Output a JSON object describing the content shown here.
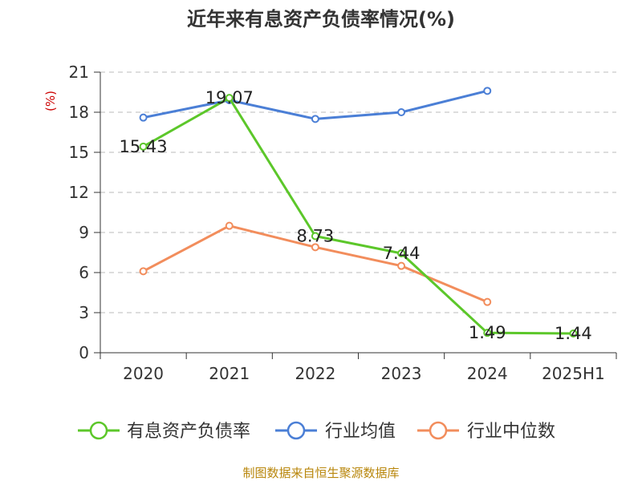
{
  "title": "近年来有息资产负债率情况(%)",
  "source": "制图数据来自恒生聚源数据库",
  "chart_data": {
    "type": "line",
    "title": "近年来有息资产负债率情况(%)",
    "ylabel": "(%)",
    "xlabel": "",
    "categories": [
      "2020",
      "2021",
      "2022",
      "2023",
      "2024",
      "2025H1"
    ],
    "ylim": [
      0,
      21
    ],
    "yticks": [
      0,
      3,
      6,
      9,
      12,
      15,
      18,
      21
    ],
    "grid": true,
    "legend_position": "bottom",
    "series": [
      {
        "name": "有息资产负债率",
        "color": "#5cc72a",
        "values": [
          15.43,
          19.07,
          8.73,
          7.44,
          1.49,
          1.44
        ],
        "labels": [
          "15.43",
          "19.07",
          "8.73",
          "7.44",
          "1.49",
          "1.44"
        ]
      },
      {
        "name": "行业均值",
        "color": "#4b7fd6",
        "values": [
          17.6,
          18.9,
          17.5,
          18.0,
          19.6,
          null
        ],
        "labels": null
      },
      {
        "name": "行业中位数",
        "color": "#f28d5c",
        "values": [
          6.1,
          9.5,
          7.9,
          6.5,
          3.8,
          null
        ],
        "labels": null
      }
    ]
  }
}
